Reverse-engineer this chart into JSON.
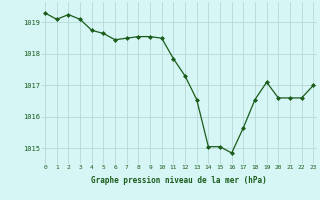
{
  "hours": [
    0,
    1,
    2,
    3,
    4,
    5,
    6,
    7,
    8,
    9,
    10,
    11,
    12,
    13,
    14,
    15,
    16,
    17,
    18,
    19,
    20,
    21,
    22,
    23
  ],
  "pressure": [
    1019.3,
    1019.1,
    1019.25,
    1019.1,
    1018.75,
    1018.65,
    1018.45,
    1018.5,
    1018.55,
    1018.55,
    1018.5,
    1017.85,
    1017.3,
    1016.55,
    1015.05,
    1015.05,
    1014.85,
    1015.65,
    1016.55,
    1017.1,
    1016.6,
    1016.6,
    1016.6,
    1017.0
  ],
  "line_color": "#1a5c1a",
  "marker_color": "#1a5c1a",
  "bg_color": "#d6f5f5",
  "grid_color": "#b8d8d8",
  "xlabel": "Graphe pression niveau de la mer (hPa)",
  "xlabel_color": "#1a5c1a",
  "tick_color": "#1a5c1a",
  "ylim": [
    1014.5,
    1019.65
  ],
  "yticks": [
    1015,
    1016,
    1017,
    1018,
    1019
  ],
  "xticks": [
    0,
    1,
    2,
    3,
    4,
    5,
    6,
    7,
    8,
    9,
    10,
    11,
    12,
    13,
    14,
    15,
    16,
    17,
    18,
    19,
    20,
    21,
    22,
    23
  ]
}
